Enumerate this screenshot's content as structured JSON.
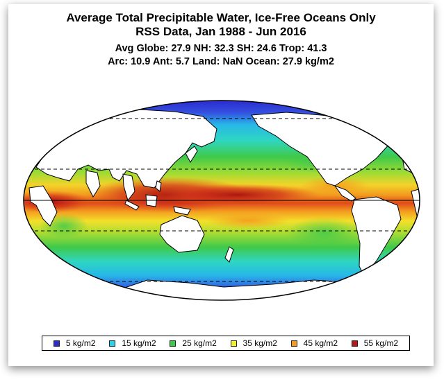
{
  "title": {
    "line1": "Average Total Precipitable Water, Ice-Free Oceans Only",
    "line2": "RSS Data, Jan 1988 - Jun 2016",
    "line3": "Avg Globe: 27.9  NH: 32.3  SH: 24.6  Trop: 41.3",
    "line4": "Arc: 10.9  Ant: 5.7  Land: NaN Ocean: 27.9 kg/m2"
  },
  "legend": [
    {
      "label": "5 kg/m2",
      "color": "#2b2bcf"
    },
    {
      "label": "15 kg/m2",
      "color": "#27d3e6"
    },
    {
      "label": "25 kg/m2",
      "color": "#3fc94a"
    },
    {
      "label": "35 kg/m2",
      "color": "#f3f02c"
    },
    {
      "label": "45 kg/m2",
      "color": "#f39a1f"
    },
    {
      "label": "55 kg/m2",
      "color": "#b81818"
    }
  ],
  "map": {
    "projection": "mollweide",
    "center_longitude": "180",
    "reference_lines": [
      "equator",
      "tropic-of-cancer",
      "tropic-of-capricorn",
      "arctic-circle",
      "antarctic-circle"
    ],
    "land_color": "#ffffff"
  }
}
